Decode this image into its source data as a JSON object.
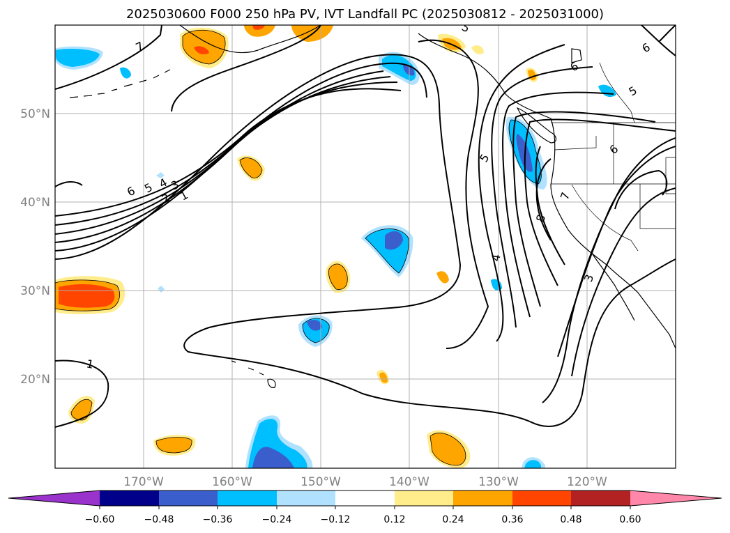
{
  "title": "2025030600 F000 250 hPa PV, IVT Landfall PC (2025030812 - 2025031000)",
  "map": {
    "projection": "equirectangular",
    "lon_range": [
      -180,
      -110
    ],
    "lat_range": [
      10,
      60
    ],
    "grid": true,
    "lat_labels": [
      "50°N",
      "40°N",
      "30°N",
      "20°N"
    ],
    "lon_labels": [
      "170°W",
      "160°W",
      "150°W",
      "140°W",
      "130°W",
      "120°W"
    ],
    "contour_labels": [
      "6",
      "5",
      "4",
      "3",
      "2",
      "1",
      "1",
      "4",
      "5",
      "6",
      "7",
      "8",
      "3",
      "5",
      "6",
      "6",
      "7",
      "5"
    ]
  },
  "colorbar": {
    "ticks": [
      "−0.60",
      "−0.48",
      "−0.36",
      "−0.24",
      "−0.12",
      "0.12",
      "0.24",
      "0.36",
      "0.48",
      "0.60"
    ],
    "colors": [
      "#9933cc",
      "#00008b",
      "#3a5fcd",
      "#00bfff",
      "#b0e2ff",
      "#ffffff",
      "#ffec8b",
      "#ffa500",
      "#ff4500",
      "#b22222",
      "#ff88aa"
    ],
    "extend": "both"
  },
  "colors": {
    "neg_1": "#b0e2ff",
    "neg_2": "#00bfff",
    "neg_3": "#3a5fcd",
    "pos_1": "#ffec8b",
    "pos_2": "#ffa500",
    "pos_3": "#ff4500",
    "grid": "#b0b0b0",
    "contour": "#000000"
  }
}
